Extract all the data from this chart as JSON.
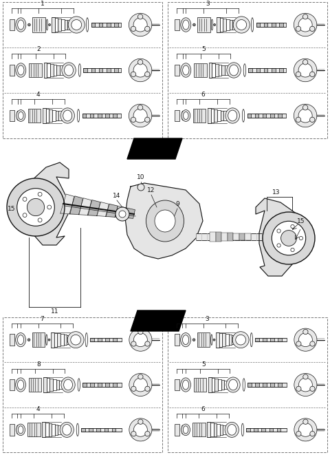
{
  "bg_color": "#ffffff",
  "text_color": "#111111",
  "dashed_color": "#777777",
  "part_color": "#111111",
  "fill_white": "#ffffff",
  "fill_light": "#e8e8e8",
  "fill_mid": "#bbbbbb",
  "fill_dark": "#888888",
  "top_left_labels": [
    "1",
    "2",
    "4"
  ],
  "top_right_labels": [
    "3",
    "5",
    "6"
  ],
  "bot_left_labels": [
    "7",
    "8",
    "4"
  ],
  "bot_right_labels": [
    "3",
    "5",
    "6"
  ],
  "center_labels": [
    "14",
    "10",
    "12",
    "9",
    "15",
    "11",
    "13",
    "15"
  ]
}
